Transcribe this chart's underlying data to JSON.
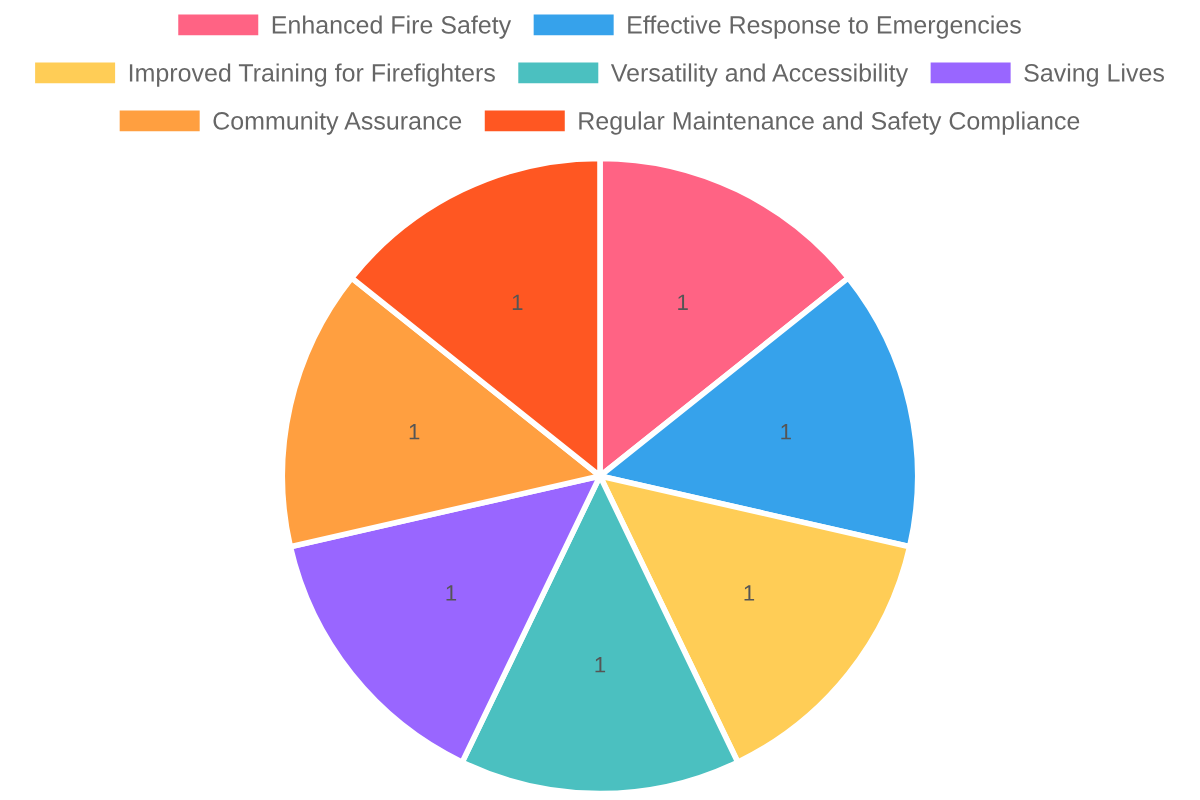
{
  "chart_data": {
    "type": "pie",
    "categories": [
      "Enhanced Fire Safety",
      "Effective Response to Emergencies",
      "Improved Training for Firefighters",
      "Versatility and Accessibility",
      "Saving Lives",
      "Community Assurance",
      "Regular Maintenance and Safety Compliance"
    ],
    "values": [
      1,
      1,
      1,
      1,
      1,
      1,
      1
    ],
    "colors": [
      "#ff6384",
      "#36a2eb",
      "#ffcd56",
      "#4bc0c0",
      "#9966ff",
      "#ff9f40",
      "#ff5722"
    ],
    "data_labels": true,
    "legend": "top"
  }
}
